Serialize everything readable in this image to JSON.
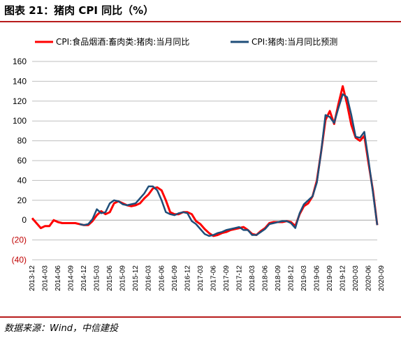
{
  "figure": {
    "title": "图表 21：猪肉 CPI 同比（%）",
    "source": "数据来源：Wind，中信建投"
  },
  "colors": {
    "series_actual": "#ff0000",
    "series_forecast": "#1f4e79",
    "rule": "#b71c1c",
    "negative_tick": "#c00000",
    "grid": "#bfbfbf"
  },
  "chart_data": {
    "type": "line",
    "ylim": [
      -40,
      160
    ],
    "yticks": [
      160,
      140,
      120,
      100,
      80,
      60,
      40,
      20,
      0,
      -20,
      -40
    ],
    "ytick_labels": [
      "160",
      "140",
      "120",
      "100",
      "80",
      "60",
      "40",
      "20",
      "0",
      "(20)",
      "(40)"
    ],
    "grid": true,
    "legend_position": "top",
    "x_tick_labels": [
      "2013-12",
      "2014-03",
      "2014-06",
      "2014-09",
      "2014-12",
      "2015-03",
      "2015-06",
      "2015-09",
      "2015-12",
      "2016-03",
      "2016-06",
      "2016-09",
      "2016-12",
      "2017-03",
      "2017-06",
      "2017-09",
      "2017-12",
      "2018-03",
      "2018-06",
      "2018-09",
      "2018-12",
      "2019-03",
      "2019-06",
      "2019-09",
      "2019-12",
      "2020-03",
      "2020-06",
      "2020-09"
    ],
    "series": [
      {
        "name": "CPI:食品烟酒:畜肉类:猪肉:当月同比",
        "color": "#ff0000",
        "values": [
          2,
          -3,
          -8,
          -6,
          -6,
          0,
          -2,
          -3,
          -3,
          -3,
          -3,
          -4,
          -5,
          -5,
          -1,
          5,
          9,
          6,
          8,
          17,
          19,
          17,
          15,
          14,
          15,
          17,
          22,
          26,
          32,
          33,
          30,
          20,
          8,
          6,
          6,
          8,
          8,
          6,
          -1,
          -4,
          -9,
          -13,
          -16,
          -15,
          -13,
          -12,
          -10,
          -9,
          -8,
          -7,
          -10,
          -14,
          -15,
          -11,
          -8,
          -3,
          -2,
          -2,
          -2,
          -1,
          -2,
          -6,
          6,
          14,
          17,
          24,
          40,
          69,
          101,
          110,
          97,
          117,
          135,
          117,
          96,
          83,
          80,
          85,
          57,
          30,
          -5
        ]
      },
      {
        "name": "CPI:猪肉:当月同比预测",
        "color": "#1f4e79",
        "values": [
          null,
          null,
          null,
          null,
          null,
          null,
          null,
          null,
          null,
          null,
          null,
          -4,
          -5,
          -4,
          1,
          11,
          7,
          8,
          17,
          20,
          19,
          16,
          15,
          16,
          17,
          22,
          27,
          34,
          34,
          30,
          20,
          8,
          6,
          5,
          7,
          8,
          7,
          -1,
          -4,
          -9,
          -14,
          -16,
          -15,
          -13,
          -12,
          -10,
          -9,
          -8,
          -7,
          -10,
          -10,
          -15,
          -15,
          -12,
          -9,
          -4,
          -3,
          -2,
          -1,
          -1,
          -3,
          -8,
          7,
          16,
          20,
          24,
          38,
          69,
          106,
          104,
          98,
          113,
          127,
          124,
          106,
          84,
          83,
          89,
          60,
          28,
          -5
        ]
      }
    ]
  }
}
